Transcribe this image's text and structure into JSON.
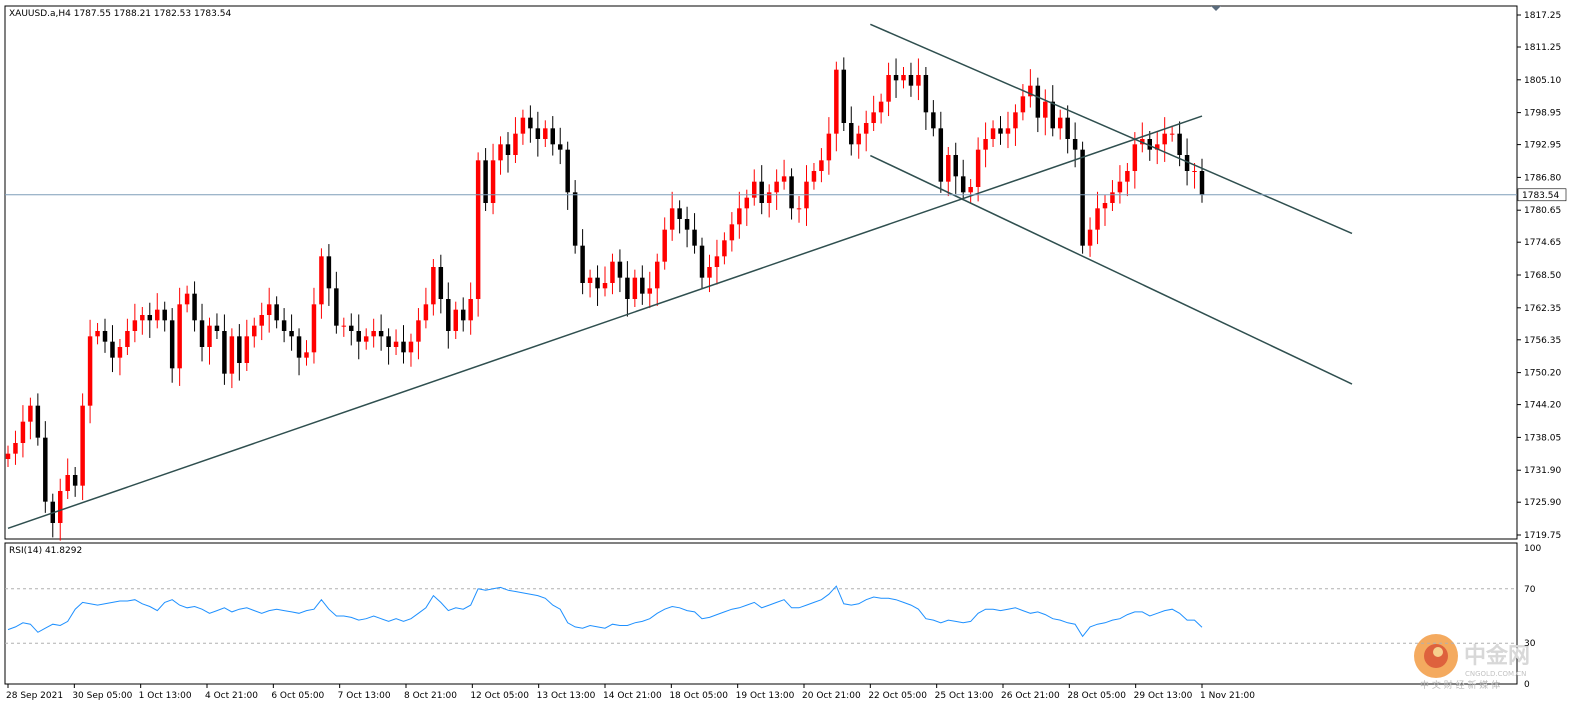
{
  "header": {
    "symbol_line": "XAUUSD.a,H4  1787.55 1788.21 1782.53 1783.54",
    "indicator_label": "RSI(14) 41.8292"
  },
  "price_axis": {
    "ticks": [
      "1817.25",
      "1811.25",
      "1805.10",
      "1798.95",
      "1792.95",
      "1786.80",
      "1780.65",
      "1774.65",
      "1768.50",
      "1762.35",
      "1756.35",
      "1750.20",
      "1744.20",
      "1738.05",
      "1731.90",
      "1725.90",
      "1719.75"
    ],
    "current_price_label": "1783.54"
  },
  "rsi_axis": {
    "ticks": [
      "100",
      "70",
      "30",
      "0"
    ]
  },
  "time_axis": {
    "labels": [
      "28 Sep 2021",
      "30 Sep 05:00",
      "1 Oct 13:00",
      "4 Oct 21:00",
      "6 Oct 05:00",
      "7 Oct 13:00",
      "8 Oct 21:00",
      "12 Oct 05:00",
      "13 Oct 13:00",
      "14 Oct 21:00",
      "18 Oct 05:00",
      "19 Oct 13:00",
      "20 Oct 21:00",
      "22 Oct 05:00",
      "25 Oct 13:00",
      "26 Oct 21:00",
      "28 Oct 05:00",
      "29 Oct 13:00",
      "1 Nov 21:00"
    ]
  },
  "watermark": {
    "brand": "中金网",
    "domain": "CNGOLD.COM.CN",
    "tagline": "中 文 财 经 新 媒 体"
  },
  "colors": {
    "bull": "#ff0000",
    "bear": "#000000",
    "trendline": "#2f4f4f",
    "rsi_line": "#1e90ff",
    "current_price_line": "#7f9db9"
  },
  "chart_data": [
    {
      "type": "candlestick",
      "title": "XAUUSD.a,H4",
      "ylim": [
        1719.75,
        1817.25
      ],
      "last_bar": {
        "open": 1787.55,
        "high": 1788.21,
        "low": 1782.53,
        "close": 1783.54
      },
      "current_price": 1783.54,
      "x_labels": [
        "28 Sep 2021",
        "30 Sep 05:00",
        "1 Oct 13:00",
        "4 Oct 21:00",
        "6 Oct 05:00",
        "7 Oct 13:00",
        "8 Oct 21:00",
        "12 Oct 05:00",
        "13 Oct 13:00",
        "14 Oct 21:00",
        "18 Oct 05:00",
        "19 Oct 13:00",
        "20 Oct 21:00",
        "22 Oct 05:00",
        "25 Oct 13:00",
        "26 Oct 21:00",
        "28 Oct 05:00",
        "29 Oct 13:00",
        "1 Nov 21:00"
      ],
      "closes": [
        1735,
        1737,
        1741,
        1744,
        1738,
        1726,
        1722,
        1728,
        1731,
        1729,
        1744,
        1757,
        1758,
        1756,
        1753,
        1755,
        1758,
        1760,
        1761,
        1760,
        1762,
        1760,
        1751,
        1763,
        1765,
        1760,
        1755,
        1759,
        1758,
        1750,
        1757,
        1752,
        1757,
        1759,
        1761,
        1763,
        1760,
        1758,
        1757,
        1753,
        1754,
        1763,
        1772,
        1766,
        1759,
        1759,
        1758,
        1756,
        1757,
        1758,
        1757,
        1755,
        1756,
        1754,
        1756,
        1760,
        1763,
        1770,
        1764,
        1758,
        1762,
        1760,
        1764,
        1790,
        1782,
        1790,
        1793,
        1791,
        1795,
        1798,
        1796,
        1794,
        1796,
        1793,
        1792,
        1784,
        1774,
        1767,
        1768,
        1766,
        1767,
        1771,
        1768,
        1764,
        1768,
        1765,
        1766,
        1771,
        1777,
        1781,
        1779,
        1777,
        1774,
        1768,
        1770,
        1772,
        1775,
        1778,
        1781,
        1783,
        1786,
        1782,
        1784,
        1786,
        1787,
        1781,
        1781,
        1786,
        1788,
        1790,
        1795,
        1807,
        1797,
        1793,
        1795,
        1797,
        1799,
        1801,
        1806,
        1805,
        1806,
        1804,
        1806,
        1799,
        1796,
        1786,
        1791,
        1787,
        1784,
        1785,
        1792,
        1794,
        1796,
        1795,
        1796,
        1799,
        1802,
        1804,
        1798,
        1801,
        1796,
        1798,
        1794,
        1792,
        1774,
        1777,
        1781,
        1782,
        1784,
        1786,
        1788,
        1793,
        1794,
        1792,
        1793,
        1795,
        1795,
        1791,
        1788,
        1788,
        1783.54
      ],
      "trendlines": [
        {
          "from": [
            "28 Sep 2021",
            1721.0
          ],
          "to": [
            "1 Nov 21:00",
            1798.3
          ]
        },
        {
          "from": [
            "22 Oct 05:00",
            1815.5
          ],
          "to": [
            "1 Nov 21:00",
            1788.5
          ]
        },
        {
          "from": [
            "22 Oct 05:00",
            1790.9
          ],
          "to": [
            "1 Nov 21:00",
            1761.4
          ]
        }
      ]
    },
    {
      "type": "line",
      "title": "RSI(14)",
      "last_value": 41.8292,
      "ylim": [
        0,
        100
      ],
      "levels": [
        70,
        30
      ],
      "values": [
        40,
        42,
        45,
        44,
        38,
        41,
        44,
        43,
        46,
        55,
        60,
        59,
        58,
        59,
        60,
        61,
        61,
        62,
        59,
        57,
        54,
        60,
        62,
        58,
        56,
        57,
        55,
        52,
        54,
        56,
        53,
        55,
        56,
        54,
        52,
        54,
        55,
        54,
        53,
        52,
        54,
        55,
        62,
        55,
        50,
        50,
        49,
        47,
        48,
        50,
        48,
        46,
        48,
        46,
        48,
        52,
        56,
        65,
        60,
        54,
        56,
        55,
        58,
        70,
        69,
        70,
        71,
        69,
        68,
        67,
        66,
        65,
        63,
        58,
        55,
        45,
        42,
        41,
        43,
        42,
        41,
        44,
        43,
        43,
        45,
        46,
        48,
        52,
        55,
        57,
        56,
        54,
        53,
        48,
        49,
        51,
        53,
        55,
        56,
        58,
        60,
        56,
        58,
        60,
        62,
        56,
        56,
        58,
        60,
        62,
        66,
        72,
        59,
        58,
        59,
        62,
        64,
        63,
        63,
        62,
        60,
        58,
        55,
        48,
        47,
        45,
        47,
        46,
        45,
        46,
        52,
        55,
        55,
        54,
        55,
        56,
        54,
        52,
        53,
        51,
        48,
        47,
        45,
        44,
        35,
        42,
        44,
        45,
        47,
        48,
        51,
        53,
        53,
        50,
        52,
        54,
        55,
        52,
        47,
        47,
        41.8
      ]
    }
  ]
}
